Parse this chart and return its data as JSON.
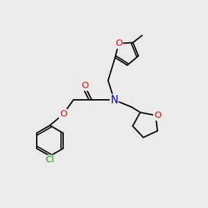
{
  "bg_color": "#ebebeb",
  "bond_color": "#000000",
  "bond_width": 1.4,
  "atom_colors": {
    "O": "#ff0000",
    "N": "#0000cc",
    "Cl": "#00aa00",
    "C": "#000000"
  },
  "font_size": 8.5,
  "fig_size": [
    3.0,
    3.0
  ],
  "dpi": 100
}
